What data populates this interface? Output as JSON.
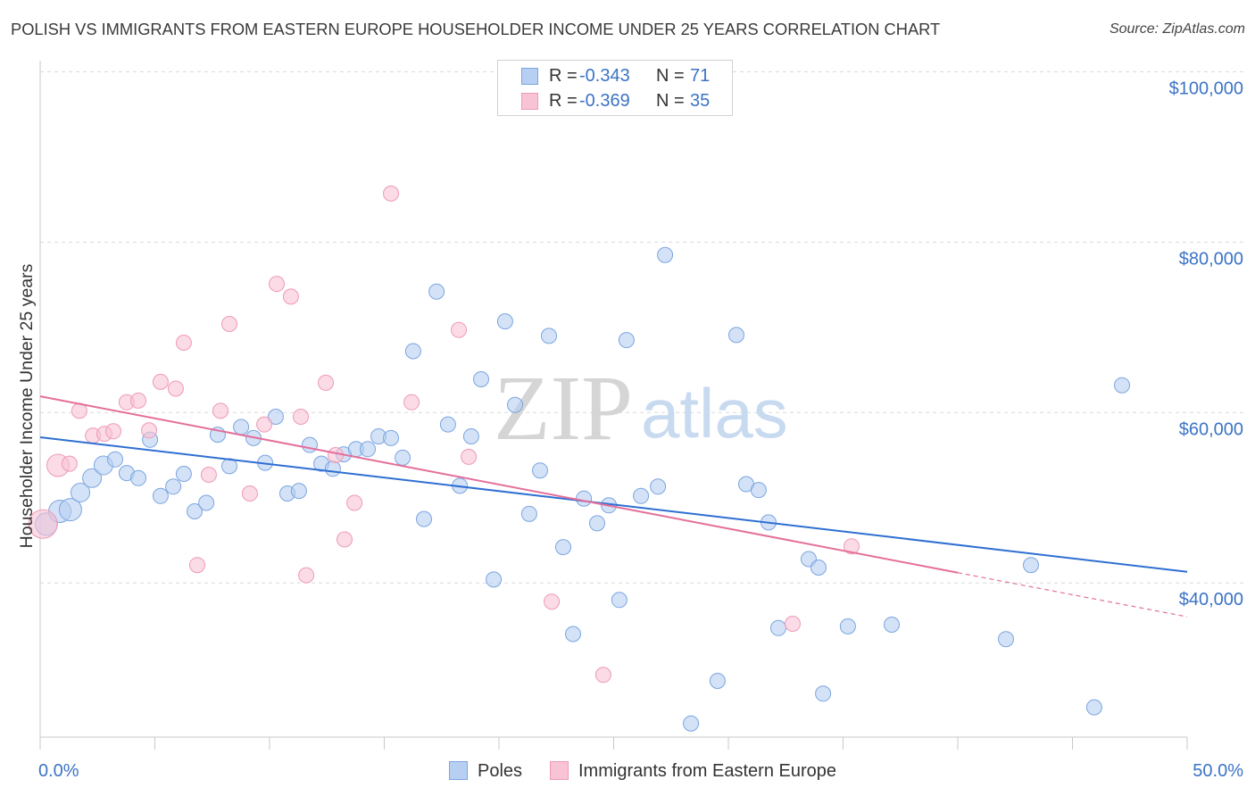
{
  "source": "Source: ZipAtlas.com",
  "watermark": {
    "zip": "ZIP",
    "atlas": "atlas"
  },
  "colors": {
    "text": "#333333",
    "accent_blue": "#3b73c5",
    "axis": "#c8c8c8",
    "grid": "#d9d9d9"
  },
  "chart_data": {
    "type": "scatter",
    "title": "POLISH VS IMMIGRANTS FROM EASTERN EUROPE HOUSEHOLDER INCOME UNDER 25 YEARS CORRELATION CHART",
    "xlabel": "",
    "ylabel": "Householder Income Under 25 years",
    "xlim": [
      0,
      50
    ],
    "ylim": [
      21900,
      101300
    ],
    "x_ticks": [
      0,
      5,
      10,
      15,
      20,
      25,
      30,
      35,
      40,
      45,
      50
    ],
    "x_tick_labels": [
      {
        "value": 0,
        "label": "0.0%"
      },
      {
        "value": 50,
        "label": "50.0%"
      }
    ],
    "y_ticks": [
      {
        "value": 40000,
        "label": "$40,000"
      },
      {
        "value": 60000,
        "label": "$60,000"
      },
      {
        "value": 80000,
        "label": "$80,000"
      },
      {
        "value": 100000,
        "label": "$100,000"
      }
    ],
    "grid": "horizontal-dashed",
    "legend_position": "top-center",
    "stat_labels": {
      "r": "R =",
      "n": "N ="
    },
    "point_fields": [
      "x_percent",
      "income_usd",
      "relative_weight"
    ],
    "series": [
      {
        "name": "Poles",
        "r": "-0.343",
        "n": "71",
        "color": "#7aa5e0",
        "fill": "#b7cff2",
        "trend_color": "#2e6fd2",
        "trend": {
          "intercept": 57100,
          "slope": -316,
          "solid_to": 50
        },
        "points": [
          [
            0.27,
            46900,
            3
          ],
          [
            0.86,
            48400,
            3
          ],
          [
            1.32,
            48600,
            3
          ],
          [
            1.75,
            50600,
            2
          ],
          [
            2.26,
            52300,
            2
          ],
          [
            2.76,
            53800,
            2
          ],
          [
            3.27,
            54500,
            1
          ],
          [
            3.77,
            52900,
            1
          ],
          [
            4.28,
            52300,
            1
          ],
          [
            4.79,
            56800,
            1
          ],
          [
            5.25,
            50200,
            1
          ],
          [
            5.8,
            51300,
            1
          ],
          [
            6.26,
            52800,
            1
          ],
          [
            6.73,
            48400,
            1
          ],
          [
            7.24,
            49400,
            1
          ],
          [
            7.74,
            57400,
            1
          ],
          [
            8.25,
            53700,
            1
          ],
          [
            8.76,
            58300,
            1
          ],
          [
            9.3,
            57000,
            1
          ],
          [
            9.81,
            54100,
            1
          ],
          [
            10.27,
            59500,
            1
          ],
          [
            10.78,
            50500,
            1
          ],
          [
            11.28,
            50800,
            1
          ],
          [
            11.75,
            56200,
            1
          ],
          [
            12.26,
            54000,
            1
          ],
          [
            12.76,
            53400,
            1
          ],
          [
            13.23,
            55100,
            1
          ],
          [
            13.77,
            55700,
            1
          ],
          [
            14.28,
            55700,
            1
          ],
          [
            14.75,
            57200,
            1
          ],
          [
            15.29,
            57000,
            1
          ],
          [
            15.8,
            54700,
            1
          ],
          [
            16.26,
            67200,
            1
          ],
          [
            16.73,
            47500,
            1
          ],
          [
            17.28,
            74200,
            1
          ],
          [
            17.78,
            58600,
            1
          ],
          [
            18.29,
            51400,
            1
          ],
          [
            18.79,
            57200,
            1
          ],
          [
            19.22,
            63900,
            1
          ],
          [
            19.77,
            40400,
            1
          ],
          [
            20.27,
            70700,
            1
          ],
          [
            20.7,
            60900,
            1
          ],
          [
            21.32,
            48100,
            1
          ],
          [
            21.79,
            53200,
            1
          ],
          [
            22.18,
            69000,
            1
          ],
          [
            22.8,
            44200,
            1
          ],
          [
            23.23,
            34000,
            1
          ],
          [
            23.7,
            49900,
            1
          ],
          [
            24.28,
            47000,
            1
          ],
          [
            24.79,
            49100,
            1
          ],
          [
            25.25,
            38000,
            1
          ],
          [
            25.56,
            68500,
            1
          ],
          [
            26.19,
            50200,
            1
          ],
          [
            26.93,
            51300,
            1
          ],
          [
            27.24,
            78500,
            1
          ],
          [
            28.37,
            23500,
            1
          ],
          [
            29.53,
            28500,
            1
          ],
          [
            30.35,
            69100,
            1
          ],
          [
            30.78,
            51600,
            1
          ],
          [
            31.32,
            50900,
            1
          ],
          [
            31.75,
            47100,
            1
          ],
          [
            32.18,
            34700,
            1
          ],
          [
            33.5,
            42800,
            1
          ],
          [
            33.93,
            41800,
            1
          ],
          [
            34.13,
            27000,
            1
          ],
          [
            35.21,
            34900,
            1
          ],
          [
            37.12,
            35100,
            1
          ],
          [
            42.1,
            33400,
            1
          ],
          [
            43.19,
            42100,
            1
          ],
          [
            45.95,
            25400,
            1
          ],
          [
            47.16,
            63200,
            1
          ]
        ]
      },
      {
        "name": "Immigrants from Eastern Europe",
        "r": "-0.369",
        "n": "35",
        "color": "#ee9ab7",
        "fill": "#f8c3d4",
        "trend_color": "#e46f9a",
        "trend": {
          "intercept": 61900,
          "slope": -517.5,
          "solid_to": 40
        },
        "points": [
          [
            0.12,
            46900,
            4
          ],
          [
            0.78,
            53800,
            3
          ],
          [
            1.28,
            54000,
            1
          ],
          [
            1.71,
            60200,
            1
          ],
          [
            2.3,
            57300,
            1
          ],
          [
            2.8,
            57500,
            1
          ],
          [
            3.19,
            57800,
            1
          ],
          [
            3.77,
            61200,
            1
          ],
          [
            4.28,
            61400,
            1
          ],
          [
            4.75,
            57900,
            1
          ],
          [
            5.25,
            63600,
            1
          ],
          [
            5.91,
            62800,
            1
          ],
          [
            6.26,
            68200,
            1
          ],
          [
            6.85,
            42100,
            1
          ],
          [
            7.35,
            52700,
            1
          ],
          [
            7.86,
            60200,
            1
          ],
          [
            8.25,
            70400,
            1
          ],
          [
            9.14,
            50500,
            1
          ],
          [
            9.77,
            58600,
            1
          ],
          [
            10.31,
            75100,
            1
          ],
          [
            10.93,
            73600,
            1
          ],
          [
            11.36,
            59500,
            1
          ],
          [
            11.6,
            40900,
            1
          ],
          [
            12.45,
            63500,
            1
          ],
          [
            12.88,
            55000,
            1
          ],
          [
            13.27,
            45100,
            1
          ],
          [
            13.7,
            49400,
            1
          ],
          [
            15.29,
            85700,
            1
          ],
          [
            16.19,
            61200,
            1
          ],
          [
            18.25,
            69700,
            1
          ],
          [
            18.68,
            54800,
            1
          ],
          [
            22.3,
            37800,
            1
          ],
          [
            24.55,
            29200,
            1
          ],
          [
            32.8,
            35200,
            1
          ],
          [
            35.37,
            44300,
            1
          ]
        ]
      }
    ]
  }
}
